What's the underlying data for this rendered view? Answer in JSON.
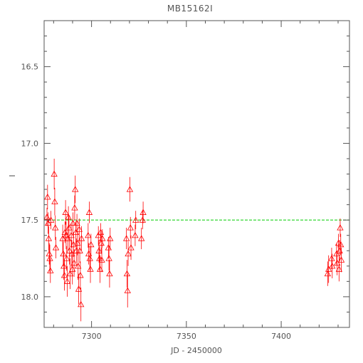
{
  "chart_data": {
    "type": "scatter",
    "title": "MB15162I",
    "xlabel": "JD - 2450000",
    "ylabel": "I",
    "xlim": [
      7275,
      7436
    ],
    "ylim": [
      18.2,
      16.2
    ],
    "y_inverted": true,
    "grid": false,
    "xticks": [
      7300,
      7350,
      7400
    ],
    "yticks": [
      16.5,
      17.0,
      17.5,
      18.0
    ],
    "xtick_labels": [
      "7300",
      "7350",
      "7400"
    ],
    "ytick_labels": [
      "16.5",
      "17.0",
      "17.5",
      "18.0"
    ],
    "baseline": {
      "value": 17.5,
      "color": "#00cc00"
    },
    "point_color": "#ff0000",
    "marker": "triangle",
    "points": [
      [
        7276.5,
        17.48,
        0.06
      ],
      [
        7276.8,
        17.35,
        0.08
      ],
      [
        7277.1,
        17.52,
        0.07
      ],
      [
        7277.4,
        17.62,
        0.08
      ],
      [
        7277.7,
        17.72,
        0.07
      ],
      [
        7278,
        17.75,
        0.09
      ],
      [
        7278.3,
        17.83,
        0.08
      ],
      [
        7278.6,
        17.5,
        0.06
      ],
      [
        7280.3,
        17.2,
        0.1
      ],
      [
        7280.6,
        17.38,
        0.09
      ],
      [
        7280.9,
        17.55,
        0.08
      ],
      [
        7281.2,
        17.68,
        0.07
      ],
      [
        7284.8,
        17.62,
        0.09
      ],
      [
        7285.1,
        17.72,
        0.08
      ],
      [
        7285.4,
        17.8,
        0.09
      ],
      [
        7285.7,
        17.86,
        0.1
      ],
      [
        7286,
        17.58,
        0.07
      ],
      [
        7286.3,
        17.45,
        0.08
      ],
      [
        7286.6,
        17.6,
        0.09
      ],
      [
        7286.9,
        17.75,
        0.08
      ],
      [
        7287.2,
        17.9,
        0.1
      ],
      [
        7287.5,
        17.62,
        0.08
      ],
      [
        7287.8,
        17.48,
        0.07
      ],
      [
        7288.1,
        17.55,
        0.08
      ],
      [
        7288.4,
        17.7,
        0.09
      ],
      [
        7288.7,
        17.85,
        0.1
      ],
      [
        7289.3,
        17.6,
        0.08
      ],
      [
        7289.6,
        17.72,
        0.09
      ],
      [
        7289.9,
        17.82,
        0.1
      ],
      [
        7290.2,
        17.52,
        0.07
      ],
      [
        7290.5,
        17.66,
        0.08
      ],
      [
        7290.8,
        17.78,
        0.09
      ],
      [
        7291.1,
        17.42,
        0.08
      ],
      [
        7291.4,
        17.3,
        0.09
      ],
      [
        7291.7,
        17.58,
        0.07
      ],
      [
        7292,
        17.7,
        0.08
      ],
      [
        7292.3,
        17.52,
        0.06
      ],
      [
        7292.6,
        17.65,
        0.08
      ],
      [
        7292.9,
        17.8,
        0.09
      ],
      [
        7293.2,
        17.95,
        0.1
      ],
      [
        7293.5,
        17.56,
        0.07
      ],
      [
        7293.8,
        17.7,
        0.08
      ],
      [
        7294.1,
        17.86,
        0.09
      ],
      [
        7294.4,
        18.05,
        0.11
      ],
      [
        7294.7,
        17.62,
        0.08
      ],
      [
        7298.2,
        17.6,
        0.08
      ],
      [
        7298.5,
        17.72,
        0.07
      ],
      [
        7298.8,
        17.45,
        0.07
      ],
      [
        7299.1,
        17.75,
        0.08
      ],
      [
        7299.4,
        17.82,
        0.09
      ],
      [
        7299.7,
        17.66,
        0.07
      ],
      [
        7303.6,
        17.6,
        0.06
      ],
      [
        7303.9,
        17.7,
        0.07
      ],
      [
        7304.2,
        17.75,
        0.08
      ],
      [
        7304.5,
        17.82,
        0.09
      ],
      [
        7304.8,
        17.58,
        0.06
      ],
      [
        7305.1,
        17.65,
        0.07
      ],
      [
        7305.4,
        17.76,
        0.08
      ],
      [
        7305.7,
        17.62,
        0.06
      ],
      [
        7308.9,
        17.68,
        0.07
      ],
      [
        7309.2,
        17.75,
        0.08
      ],
      [
        7309.5,
        17.85,
        0.09
      ],
      [
        7309.8,
        17.62,
        0.07
      ],
      [
        7318.4,
        17.62,
        0.07
      ],
      [
        7318.7,
        17.85,
        0.09
      ],
      [
        7319,
        17.96,
        0.11
      ],
      [
        7319.3,
        17.72,
        0.08
      ],
      [
        7320.2,
        17.3,
        0.08
      ],
      [
        7320.5,
        17.55,
        0.07
      ],
      [
        7320.8,
        17.68,
        0.08
      ],
      [
        7323,
        17.6,
        0.07
      ],
      [
        7323.3,
        17.5,
        0.06
      ],
      [
        7326.3,
        17.62,
        0.07
      ],
      [
        7326.9,
        17.5,
        0.06
      ],
      [
        7327.2,
        17.45,
        0.07
      ],
      [
        7424.5,
        17.85,
        0.08
      ],
      [
        7425,
        17.82,
        0.09
      ],
      [
        7426.6,
        17.75,
        0.07
      ],
      [
        7426.9,
        17.8,
        0.08
      ],
      [
        7429.2,
        17.72,
        0.07
      ],
      [
        7429.5,
        17.78,
        0.08
      ],
      [
        7430.2,
        17.65,
        0.06
      ],
      [
        7430.5,
        17.82,
        0.08
      ],
      [
        7430.8,
        17.7,
        0.07
      ],
      [
        7431.1,
        17.55,
        0.06
      ],
      [
        7431.4,
        17.66,
        0.07
      ],
      [
        7431.7,
        17.76,
        0.08
      ]
    ]
  }
}
